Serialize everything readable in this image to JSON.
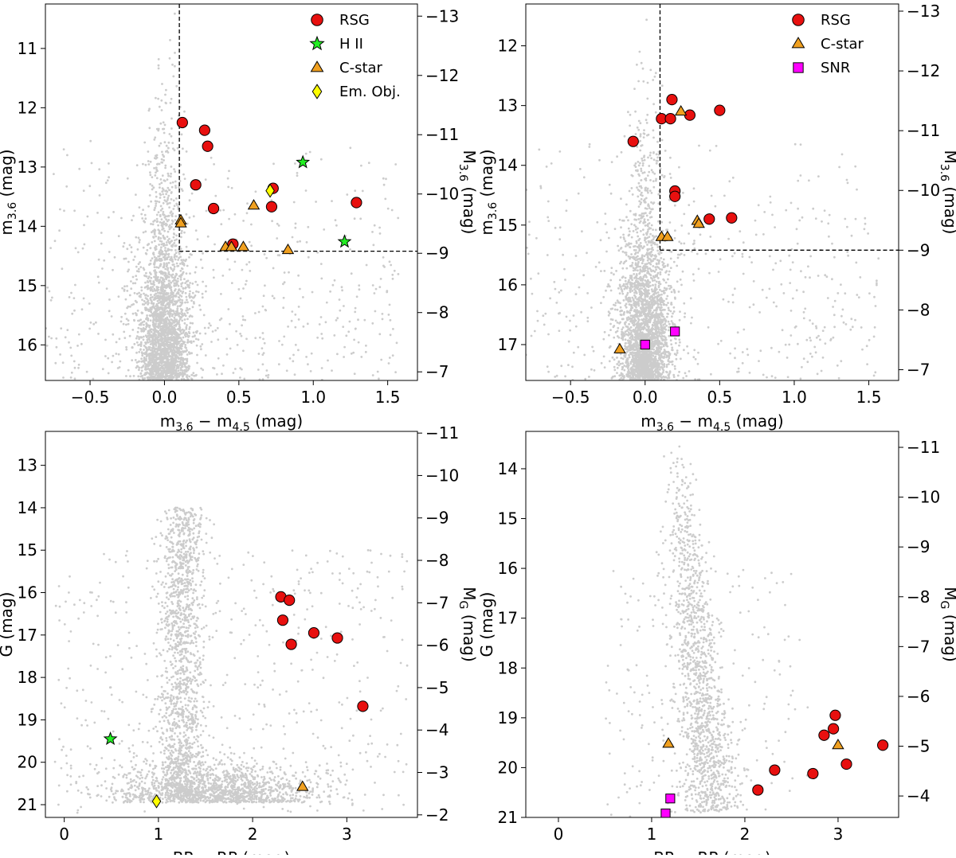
{
  "chart_data": [
    {
      "id": "p1",
      "type": "scatter",
      "xlabel": "m_{3.6} − m_{4.5} (mag)",
      "ylabel": "m_{3.6} (mag)",
      "ylabel_right": "M_{3.6} (mag)",
      "xlim": [
        -0.8,
        1.7
      ],
      "ylim": [
        16.6,
        10.25
      ],
      "right_ylim": [
        -6.855,
        -13.205
      ],
      "xticks": [
        -0.5,
        0.0,
        0.5,
        1.0,
        1.5
      ],
      "xtick_labels": [
        "−0.5",
        "0.0",
        "0.5",
        "1.0",
        "1.5"
      ],
      "yticks": [
        11,
        12,
        13,
        14,
        15,
        16
      ],
      "ytick_labels": [
        "11",
        "12",
        "13",
        "14",
        "15",
        "16"
      ],
      "right_yticks": [
        -13,
        -12,
        -11,
        -10,
        -9,
        -8,
        -7
      ],
      "right_ytick_labels": [
        "−13",
        "−12",
        "−11",
        "−10",
        "−9",
        "−8",
        "−7"
      ],
      "legend": [
        "RSG",
        "H II",
        "C-star",
        "Em. Obj."
      ],
      "legend_position": "top-right",
      "cut_lines": {
        "vertical_x": 0.1,
        "horizontal_y": 14.42
      },
      "background": {
        "dist": "midir",
        "n": 3000,
        "seed": 11,
        "xc": 0.0,
        "xw": 0.09,
        "yk": 15.6
      },
      "series": [
        {
          "name": "RSG",
          "marker": "circle",
          "color": "#e8100f",
          "points": [
            [
              0.12,
              12.25
            ],
            [
              0.27,
              12.38
            ],
            [
              0.29,
              12.65
            ],
            [
              0.21,
              13.3
            ],
            [
              0.33,
              13.7
            ],
            [
              0.46,
              14.3
            ],
            [
              0.73,
              13.36
            ],
            [
              0.72,
              13.67
            ],
            [
              1.29,
              13.6
            ]
          ]
        },
        {
          "name": "H II",
          "marker": "star",
          "color": "#22ee22",
          "points": [
            [
              0.93,
              12.92
            ],
            [
              1.21,
              14.26
            ]
          ]
        },
        {
          "name": "C-star",
          "marker": "triangle",
          "color": "#f0a020",
          "points": [
            [
              0.11,
              13.9
            ],
            [
              0.11,
              13.95
            ],
            [
              0.41,
              14.35
            ],
            [
              0.45,
              14.35
            ],
            [
              0.53,
              14.35
            ],
            [
              0.6,
              13.65
            ],
            [
              0.83,
              14.4
            ]
          ]
        },
        {
          "name": "Em. Obj.",
          "marker": "diamond",
          "color": "#ffff00",
          "points": [
            [
              0.71,
              13.4
            ]
          ]
        }
      ]
    },
    {
      "id": "p2",
      "type": "scatter",
      "xlabel": "m_{3.6} − m_{4.5} (mag)",
      "ylabel": "m_{3.6} (mag)",
      "ylabel_right": "M_{3.6} (mag)",
      "xlim": [
        -0.8,
        1.7
      ],
      "ylim": [
        17.6,
        11.3
      ],
      "right_ylim": [
        -6.82,
        -13.12
      ],
      "xticks": [
        -0.5,
        0.0,
        0.5,
        1.0,
        1.5
      ],
      "xtick_labels": [
        "−0.5",
        "0.0",
        "0.5",
        "1.0",
        "1.5"
      ],
      "yticks": [
        12,
        13,
        14,
        15,
        16,
        17
      ],
      "ytick_labels": [
        "12",
        "13",
        "14",
        "15",
        "16",
        "17"
      ],
      "right_yticks": [
        -13,
        -12,
        -11,
        -10,
        -9,
        -8,
        -7
      ],
      "right_ytick_labels": [
        "−13",
        "−12",
        "−11",
        "−10",
        "−9",
        "−8",
        "−7"
      ],
      "legend": [
        "RSG",
        "C-star",
        "SNR"
      ],
      "legend_position": "top-right",
      "cut_lines": {
        "vertical_x": 0.1,
        "horizontal_y": 15.42
      },
      "background": {
        "dist": "midir",
        "n": 3000,
        "seed": 29,
        "xc": 0.0,
        "xw": 0.09,
        "yk": 16.4
      },
      "series": [
        {
          "name": "RSG",
          "marker": "circle",
          "color": "#e8100f",
          "points": [
            [
              -0.08,
              13.6
            ],
            [
              0.11,
              13.22
            ],
            [
              0.17,
              13.22
            ],
            [
              0.18,
              12.9
            ],
            [
              0.3,
              13.16
            ],
            [
              0.5,
              13.08
            ],
            [
              0.2,
              14.43
            ],
            [
              0.2,
              14.52
            ],
            [
              0.43,
              14.9
            ],
            [
              0.58,
              14.88
            ]
          ]
        },
        {
          "name": "C-star",
          "marker": "triangle",
          "color": "#f0a020",
          "points": [
            [
              0.24,
              13.1
            ],
            [
              0.35,
              14.93
            ],
            [
              0.36,
              14.98
            ],
            [
              0.11,
              15.2
            ],
            [
              0.15,
              15.2
            ],
            [
              -0.17,
              17.08
            ]
          ]
        },
        {
          "name": "SNR",
          "marker": "square",
          "color": "#ff00ff",
          "points": [
            [
              0.0,
              17.0
            ],
            [
              0.2,
              16.78
            ]
          ]
        }
      ]
    },
    {
      "id": "p3",
      "type": "scatter",
      "xlabel": "BP − RP (mag)",
      "ylabel": "G (mag)",
      "ylabel_right": "M_{G} (mag)",
      "xlim": [
        -0.2,
        3.75
      ],
      "ylim": [
        21.3,
        12.2
      ],
      "right_ylim": [
        -1.94,
        -11.04
      ],
      "xticks": [
        0,
        1,
        2,
        3
      ],
      "xtick_labels": [
        "0",
        "1",
        "2",
        "3"
      ],
      "yticks": [
        13,
        14,
        15,
        16,
        17,
        18,
        19,
        20,
        21
      ],
      "ytick_labels": [
        "13",
        "14",
        "15",
        "16",
        "17",
        "18",
        "19",
        "20",
        "21"
      ],
      "right_yticks": [
        -11,
        -10,
        -9,
        -8,
        -7,
        -6,
        -5,
        -4,
        -3,
        -2
      ],
      "right_ytick_labels": [
        "−11",
        "−10",
        "−9",
        "−8",
        "−7",
        "−6",
        "−5",
        "−4",
        "−3",
        "−2"
      ],
      "legend": [],
      "cut_lines": null,
      "background": {
        "dist": "optical",
        "n": 3200,
        "seed": 47
      },
      "series": [
        {
          "name": "RSG",
          "marker": "circle",
          "color": "#e8100f",
          "points": [
            [
              2.3,
              16.1
            ],
            [
              2.39,
              16.18
            ],
            [
              2.32,
              16.65
            ],
            [
              2.41,
              17.22
            ],
            [
              2.65,
              16.95
            ],
            [
              2.9,
              17.07
            ],
            [
              3.17,
              18.68
            ]
          ]
        },
        {
          "name": "H II",
          "marker": "star",
          "color": "#22ee22",
          "points": [
            [
              0.49,
              19.45
            ]
          ]
        },
        {
          "name": "C-star",
          "marker": "triangle",
          "color": "#f0a020",
          "points": [
            [
              2.53,
              20.58
            ]
          ]
        },
        {
          "name": "Em. Obj.",
          "marker": "diamond",
          "color": "#ffff00",
          "points": [
            [
              0.98,
              20.92
            ]
          ]
        }
      ]
    },
    {
      "id": "p4",
      "type": "scatter",
      "xlabel": "BP − RP (mag)",
      "ylabel": "G (mag)",
      "ylabel_right": "M_{G} (mag)",
      "xlim": [
        -0.35,
        3.65
      ],
      "ylim": [
        21.0,
        13.25
      ],
      "right_ylim": [
        -3.57,
        -11.32
      ],
      "xticks": [
        0,
        1,
        2,
        3
      ],
      "xtick_labels": [
        "0",
        "1",
        "2",
        "3"
      ],
      "yticks": [
        14,
        15,
        16,
        17,
        18,
        19,
        20,
        21
      ],
      "ytick_labels": [
        "14",
        "15",
        "16",
        "17",
        "18",
        "19",
        "20",
        "21"
      ],
      "right_yticks": [
        -11,
        -10,
        -9,
        -8,
        -7,
        -6,
        -5,
        -4
      ],
      "right_ytick_labels": [
        "−11",
        "−10",
        "−9",
        "−8",
        "−7",
        "−6",
        "−5",
        "−4"
      ],
      "legend": [],
      "cut_lines": null,
      "background": {
        "dist": "optical2",
        "n": 1500,
        "seed": 83
      },
      "series": [
        {
          "name": "RSG",
          "marker": "circle",
          "color": "#e8100f",
          "points": [
            [
              2.97,
              18.95
            ],
            [
              2.95,
              19.22
            ],
            [
              2.85,
              19.35
            ],
            [
              3.48,
              19.55
            ],
            [
              3.09,
              19.93
            ],
            [
              2.32,
              20.05
            ],
            [
              2.73,
              20.12
            ],
            [
              2.14,
              20.45
            ]
          ]
        },
        {
          "name": "C-star",
          "marker": "triangle",
          "color": "#f0a020",
          "points": [
            [
              1.18,
              19.52
            ],
            [
              3.0,
              19.55
            ]
          ]
        },
        {
          "name": "SNR",
          "marker": "square",
          "color": "#ff00ff",
          "points": [
            [
              1.2,
              20.62
            ],
            [
              1.15,
              20.92
            ]
          ]
        }
      ]
    }
  ]
}
